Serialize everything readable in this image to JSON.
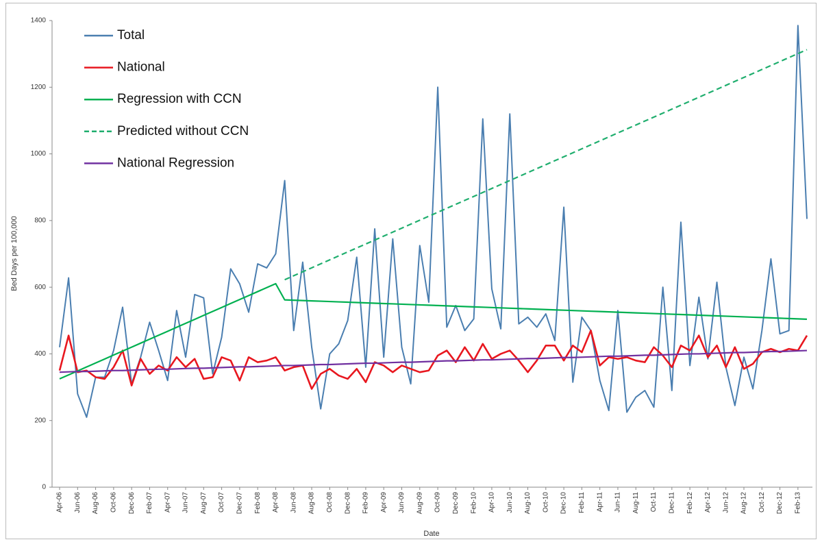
{
  "chart_data": {
    "type": "line",
    "x_label": "Date",
    "y_label": "Bed Days per 100,000",
    "ylim": [
      0,
      1400
    ],
    "yticks": [
      0,
      200,
      400,
      600,
      800,
      1000,
      1200,
      1400
    ],
    "grid": false,
    "legend": "upper left",
    "categories": [
      "Apr-06",
      null,
      "Jun-06",
      null,
      "Aug-06",
      null,
      "Oct-06",
      null,
      "Dec-06",
      null,
      "Feb-07",
      null,
      "Apr-07",
      null,
      "Jun-07",
      null,
      "Aug-07",
      null,
      "Oct-07",
      null,
      "Dec-07",
      null,
      "Feb-08",
      null,
      "Apr-08",
      null,
      "Jun-08",
      null,
      "Aug-08",
      null,
      "Oct-08",
      null,
      "Dec-08",
      null,
      "Feb-09",
      null,
      "Apr-09",
      null,
      "Jun-09",
      null,
      "Aug-09",
      null,
      "Oct-09",
      null,
      "Dec-09",
      null,
      "Feb-10",
      null,
      "Apr-10",
      null,
      "Jun-10",
      null,
      "Aug-10",
      null,
      "Oct-10",
      null,
      "Dec-10",
      null,
      "Feb-11",
      null,
      "Apr-11",
      null,
      "Jun-11",
      null,
      "Aug-11",
      null,
      "Oct-11",
      null,
      "Dec-11",
      null,
      "Feb-12",
      null,
      "Apr-12",
      null,
      "Jun-12",
      null,
      "Aug-12",
      null,
      "Oct-12",
      null,
      "Dec-12",
      null,
      "Feb-13",
      null
    ],
    "series": [
      {
        "name": "Total",
        "color": "#4a7eb0",
        "values": [
          420,
          628,
          280,
          210,
          330,
          330,
          410,
          540,
          310,
          390,
          495,
          410,
          320,
          530,
          390,
          578,
          568,
          340,
          450,
          655,
          610,
          525,
          670,
          658,
          700,
          920,
          470,
          675,
          420,
          235,
          400,
          430,
          500,
          690,
          360,
          775,
          390,
          745,
          420,
          310,
          725,
          555,
          1200,
          480,
          545,
          470,
          505,
          1105,
          595,
          475,
          1120,
          490,
          510,
          480,
          520,
          440,
          840,
          315,
          510,
          470,
          320,
          230,
          530,
          225,
          270,
          290,
          240,
          600,
          290,
          795,
          365,
          570,
          385,
          615,
          360,
          245,
          390,
          295,
          470,
          685,
          460,
          470,
          1385,
          805
        ]
      },
      {
        "name": "National",
        "color": "#e8171f",
        "values": [
          350,
          455,
          345,
          350,
          330,
          325,
          360,
          410,
          305,
          385,
          340,
          365,
          350,
          390,
          360,
          385,
          325,
          330,
          390,
          380,
          320,
          390,
          375,
          380,
          390,
          350,
          360,
          365,
          295,
          340,
          355,
          335,
          325,
          355,
          315,
          375,
          365,
          345,
          365,
          355,
          345,
          350,
          395,
          410,
          375,
          420,
          380,
          430,
          385,
          400,
          410,
          380,
          345,
          380,
          425,
          425,
          380,
          425,
          405,
          470,
          365,
          390,
          385,
          390,
          380,
          375,
          420,
          395,
          360,
          425,
          410,
          455,
          390,
          425,
          360,
          420,
          355,
          370,
          405,
          415,
          405,
          415,
          410,
          455
        ]
      },
      {
        "name": "Regression with CCN",
        "color": "#00b050",
        "values": [
          325,
          336.9,
          348.8,
          360.7,
          372.6,
          384.5,
          396.4,
          408.3,
          420.2,
          432.1,
          444,
          455.9,
          467.8,
          479.7,
          491.6,
          503.5,
          515.4,
          527.3,
          539.2,
          551.1,
          563,
          574.9,
          586.8,
          598.7,
          610.6,
          562,
          561,
          560,
          559,
          558,
          557,
          556,
          555,
          554,
          553,
          552,
          551,
          550,
          549,
          548,
          547,
          546,
          545,
          544,
          543,
          542,
          541,
          540,
          539,
          538,
          537,
          536,
          535,
          534,
          533,
          532,
          531,
          530,
          529,
          528,
          527,
          526,
          525,
          524,
          523,
          522,
          521,
          520,
          519,
          518,
          517,
          516,
          515,
          514,
          513,
          512,
          511,
          510,
          509,
          508,
          507,
          506,
          505,
          504
        ]
      },
      {
        "name": "Predicted without CCN",
        "color": "#1fae6e",
        "dashed": true,
        "values": [
          null,
          null,
          null,
          null,
          null,
          null,
          null,
          null,
          null,
          null,
          null,
          null,
          null,
          null,
          null,
          null,
          null,
          null,
          null,
          null,
          null,
          null,
          null,
          null,
          null,
          622.5,
          634.4,
          646.3,
          658.2,
          670.1,
          682,
          693.9,
          705.8,
          717.7,
          729.6,
          741.5,
          753.4,
          765.3,
          777.2,
          789.1,
          801,
          812.9,
          824.8,
          836.7,
          848.6,
          860.5,
          872.4,
          884.3,
          896.2,
          908.1,
          920,
          931.9,
          943.8,
          955.7,
          967.6,
          979.5,
          991.4,
          1003.3,
          1015.2,
          1027.1,
          1039,
          1050.9,
          1062.8,
          1074.7,
          1086.6,
          1098.5,
          1110.4,
          1122.3,
          1134.2,
          1146.1,
          1158,
          1169.9,
          1181.8,
          1193.7,
          1205.6,
          1217.5,
          1229.4,
          1241.3,
          1253.2,
          1265.1,
          1277,
          1288.9,
          1300.8,
          1312.7
        ]
      },
      {
        "name": "National Regression",
        "color": "#7030a0",
        "values": [
          345,
          346,
          347,
          347,
          348,
          349,
          350,
          350,
          351,
          352,
          353,
          354,
          354,
          355,
          356,
          357,
          357,
          358,
          359,
          360,
          361,
          361,
          362,
          363,
          364,
          365,
          365,
          366,
          367,
          368,
          368,
          369,
          370,
          371,
          372,
          372,
          373,
          374,
          375,
          375,
          376,
          377,
          378,
          379,
          379,
          380,
          381,
          382,
          382,
          383,
          384,
          385,
          386,
          386,
          387,
          388,
          389,
          389,
          390,
          391,
          392,
          393,
          393,
          394,
          395,
          396,
          396,
          397,
          398,
          399,
          400,
          400,
          401,
          402,
          403,
          404,
          404,
          405,
          406,
          407,
          407,
          408,
          409,
          410
        ]
      }
    ]
  }
}
